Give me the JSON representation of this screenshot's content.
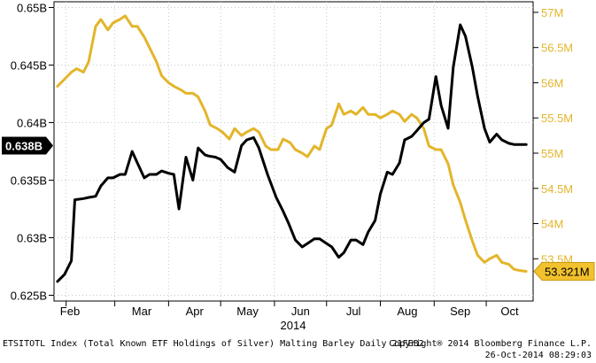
{
  "chart_data": {
    "type": "line",
    "x_axis": {
      "month_labels": [
        "Feb",
        "Mar",
        "Apr",
        "May",
        "Jun",
        "Jul",
        "Aug",
        "Sep",
        "Oct"
      ],
      "year_label": "2014"
    },
    "left_axis": {
      "ylim": [
        0.6245,
        0.6505
      ],
      "ticks": [
        0.625,
        0.63,
        0.635,
        0.64,
        0.645,
        0.65
      ],
      "tick_labels": [
        "0.625B",
        "0.63B",
        "0.635B",
        "0.64B",
        "0.645B",
        "0.65B"
      ],
      "last_value_label": "0.638B",
      "last_value": 0.638
    },
    "right_axis": {
      "ylim": [
        52.9,
        57.15
      ],
      "ticks": [
        53.5,
        54,
        54.5,
        55,
        55.5,
        56,
        56.5,
        57
      ],
      "tick_labels": [
        "53.5M",
        "54M",
        "54.5M",
        "55M",
        "55.5M",
        "56M",
        "56.5M",
        "57M"
      ],
      "last_value_label": "53.321M",
      "last_value": 53.321
    },
    "series": [
      {
        "axis": "left",
        "color": "#000000",
        "x": [
          "2014-01-27",
          "2014-01-31",
          "2014-02-04",
          "2014-02-06",
          "2014-02-11",
          "2014-02-14",
          "2014-02-18",
          "2014-02-21",
          "2014-02-25",
          "2014-02-28",
          "2014-03-04",
          "2014-03-07",
          "2014-03-11",
          "2014-03-14",
          "2014-03-18",
          "2014-03-21",
          "2014-03-25",
          "2014-03-28",
          "2014-04-01",
          "2014-04-04",
          "2014-04-07",
          "2014-04-11",
          "2014-04-15",
          "2014-04-18",
          "2014-04-22",
          "2014-04-24",
          "2014-04-28",
          "2014-05-01",
          "2014-05-05",
          "2014-05-09",
          "2014-05-13",
          "2014-05-16",
          "2014-05-20",
          "2014-05-23",
          "2014-05-28",
          "2014-06-02",
          "2014-06-06",
          "2014-06-09",
          "2014-06-13",
          "2014-06-17",
          "2014-06-20",
          "2014-06-24",
          "2014-06-27",
          "2014-07-01",
          "2014-07-04",
          "2014-07-08",
          "2014-07-11",
          "2014-07-15",
          "2014-07-18",
          "2014-07-22",
          "2014-07-25",
          "2014-07-29",
          "2014-08-01",
          "2014-08-05",
          "2014-08-08",
          "2014-08-12",
          "2014-08-15",
          "2014-08-19",
          "2014-08-22",
          "2014-08-26",
          "2014-08-29",
          "2014-09-02",
          "2014-09-05",
          "2014-09-09",
          "2014-09-12",
          "2014-09-16",
          "2014-09-19",
          "2014-09-23",
          "2014-09-26",
          "2014-09-30",
          "2014-10-03",
          "2014-10-07",
          "2014-10-10",
          "2014-10-14",
          "2014-10-17",
          "2014-10-21",
          "2014-10-24"
        ],
        "values": [
          0.6262,
          0.6268,
          0.628,
          0.6333,
          0.6334,
          0.6335,
          0.6336,
          0.6345,
          0.6352,
          0.6352,
          0.6355,
          0.6355,
          0.6375,
          0.6365,
          0.6352,
          0.6355,
          0.6355,
          0.6358,
          0.6356,
          0.6355,
          0.6325,
          0.637,
          0.635,
          0.6378,
          0.6372,
          0.6371,
          0.637,
          0.6368,
          0.6361,
          0.6357,
          0.638,
          0.6385,
          0.6387,
          0.6378,
          0.6355,
          0.6335,
          0.6323,
          0.6313,
          0.6298,
          0.6292,
          0.6295,
          0.6299,
          0.6299,
          0.6295,
          0.6292,
          0.6283,
          0.6287,
          0.6298,
          0.6298,
          0.6294,
          0.6305,
          0.6315,
          0.6338,
          0.6357,
          0.6355,
          0.6365,
          0.6385,
          0.6388,
          0.6393,
          0.64,
          0.6403,
          0.644,
          0.6415,
          0.6395,
          0.6448,
          0.6485,
          0.6475,
          0.6448,
          0.6423,
          0.6395,
          0.6383,
          0.639,
          0.6385,
          0.6382,
          0.6381,
          0.6381,
          0.6381
        ]
      },
      {
        "axis": "right",
        "color": "#e3b52a",
        "x": [
          "2014-01-27",
          "2014-01-31",
          "2014-02-04",
          "2014-02-07",
          "2014-02-11",
          "2014-02-14",
          "2014-02-18",
          "2014-02-21",
          "2014-02-25",
          "2014-02-28",
          "2014-03-04",
          "2014-03-07",
          "2014-03-11",
          "2014-03-14",
          "2014-03-18",
          "2014-03-21",
          "2014-03-25",
          "2014-03-28",
          "2014-04-01",
          "2014-04-04",
          "2014-04-08",
          "2014-04-11",
          "2014-04-15",
          "2014-04-18",
          "2014-04-22",
          "2014-04-25",
          "2014-04-29",
          "2014-05-02",
          "2014-05-06",
          "2014-05-09",
          "2014-05-13",
          "2014-05-16",
          "2014-05-20",
          "2014-05-23",
          "2014-05-27",
          "2014-05-30",
          "2014-06-03",
          "2014-06-06",
          "2014-06-10",
          "2014-06-13",
          "2014-06-17",
          "2014-06-20",
          "2014-06-24",
          "2014-06-27",
          "2014-07-01",
          "2014-07-04",
          "2014-07-08",
          "2014-07-11",
          "2014-07-15",
          "2014-07-18",
          "2014-07-22",
          "2014-07-25",
          "2014-07-29",
          "2014-08-01",
          "2014-08-05",
          "2014-08-08",
          "2014-08-12",
          "2014-08-15",
          "2014-08-19",
          "2014-08-22",
          "2014-08-26",
          "2014-08-29",
          "2014-09-02",
          "2014-09-05",
          "2014-09-09",
          "2014-09-12",
          "2014-09-16",
          "2014-09-19",
          "2014-09-23",
          "2014-09-26",
          "2014-09-30",
          "2014-10-03",
          "2014-10-07",
          "2014-10-10",
          "2014-10-14",
          "2014-10-17",
          "2014-10-21",
          "2014-10-24"
        ],
        "values": [
          55.95,
          56.05,
          56.15,
          56.2,
          56.15,
          56.3,
          56.8,
          56.9,
          56.75,
          56.85,
          56.9,
          56.95,
          56.8,
          56.8,
          56.65,
          56.5,
          56.3,
          56.1,
          56.0,
          55.95,
          55.9,
          55.85,
          55.85,
          55.8,
          55.6,
          55.4,
          55.35,
          55.3,
          55.2,
          55.35,
          55.25,
          55.3,
          55.35,
          55.3,
          55.1,
          55.05,
          55.05,
          55.2,
          55.15,
          55.05,
          55.0,
          54.95,
          55.1,
          55.05,
          55.35,
          55.4,
          55.7,
          55.55,
          55.6,
          55.55,
          55.65,
          55.55,
          55.55,
          55.5,
          55.55,
          55.6,
          55.55,
          55.45,
          55.55,
          55.5,
          55.35,
          55.1,
          55.05,
          55.05,
          54.85,
          54.55,
          54.3,
          54.05,
          53.75,
          53.55,
          53.45,
          53.5,
          53.55,
          53.45,
          53.42,
          53.35,
          53.33,
          53.321
        ]
      }
    ]
  },
  "footer": {
    "left_text": "ETSITOTL Index (Total Known ETF Holdings of Silver) Malting Barley  Daily 21FEB2",
    "right_line1": "Copyright® 2014 Bloomberg Finance L.P.",
    "right_line2": "26-Oct-2014 08:29:03"
  }
}
